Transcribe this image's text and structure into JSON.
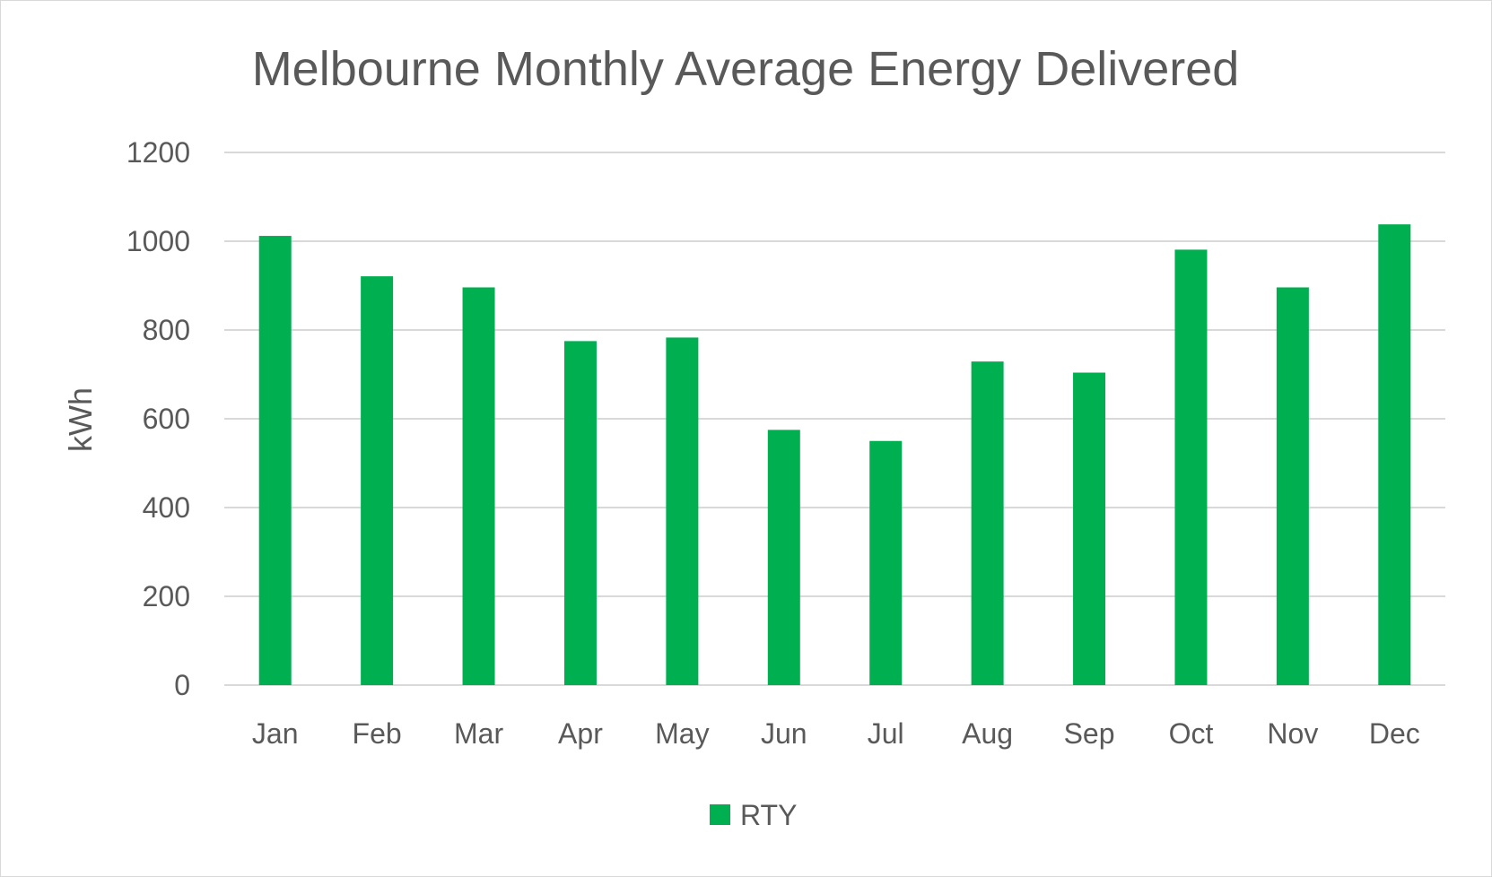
{
  "chart_data": {
    "type": "bar",
    "title": "Melbourne Monthly Average Energy Delivered",
    "xlabel": "",
    "ylabel": "kWh",
    "categories": [
      "Jan",
      "Feb",
      "Mar",
      "Apr",
      "May",
      "Jun",
      "Jul",
      "Aug",
      "Sep",
      "Oct",
      "Nov",
      "Dec"
    ],
    "series": [
      {
        "name": "RTY",
        "color": "#00b050",
        "values": [
          1012,
          921,
          896,
          775,
          783,
          575,
          550,
          729,
          704,
          981,
          896,
          1038
        ]
      }
    ],
    "ylim": [
      0,
      1200
    ],
    "yticks": [
      "0",
      "200",
      "400",
      "600",
      "800",
      "1000",
      "1200"
    ],
    "grid": true,
    "legend_position": "bottom"
  }
}
